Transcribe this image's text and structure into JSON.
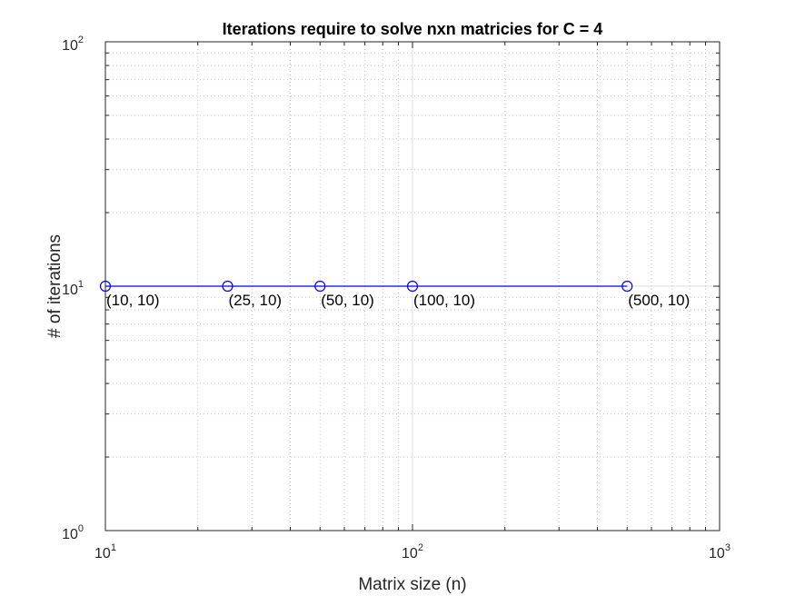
{
  "chart_data": {
    "type": "line",
    "title": "Iterations require to solve nxn matricies for C = 4",
    "xlabel": "Matrix size (n)",
    "ylabel": "# of iterations",
    "xscale": "log",
    "yscale": "log",
    "xlim": [
      10,
      1000
    ],
    "ylim": [
      1,
      100
    ],
    "grid": "major and minor",
    "legend": "none",
    "x_ticks": [
      {
        "base": "10",
        "exp": "1"
      },
      {
        "base": "10",
        "exp": "2"
      },
      {
        "base": "10",
        "exp": "3"
      }
    ],
    "y_ticks": [
      {
        "base": "10",
        "exp": "0"
      },
      {
        "base": "10",
        "exp": "1"
      },
      {
        "base": "10",
        "exp": "2"
      }
    ],
    "series": [
      {
        "x": [
          10,
          25,
          50,
          100,
          500
        ],
        "y": [
          10,
          10,
          10,
          10,
          10
        ],
        "color": "#0000ff",
        "marker": "circle-open"
      }
    ],
    "annotations": [
      "(10, 10)",
      "(25, 10)",
      "(50, 10)",
      "(100, 10)",
      "(500, 10)"
    ]
  }
}
